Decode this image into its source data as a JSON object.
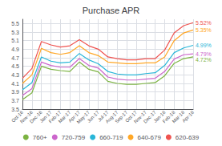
{
  "chart_data": {
    "type": "line",
    "title": "Purchase APR",
    "categories": [
      "Oct-16",
      "Nov-16",
      "Dec-16",
      "Jan-17",
      "Feb-17",
      "Mar-17",
      "Apr-17",
      "May-17",
      "Jun-17",
      "Jul-17",
      "Aug-17",
      "Sep-17",
      "Oct-17",
      "Nov-17",
      "Dec-17",
      "Jan-18",
      "Feb-18",
      "Mar-18",
      "Apr-18"
    ],
    "series": [
      {
        "name": "760+",
        "color": "#7cb342",
        "values": [
          3.72,
          3.88,
          4.5,
          4.43,
          4.4,
          4.38,
          4.6,
          4.43,
          4.37,
          4.15,
          4.1,
          4.08,
          4.08,
          4.1,
          4.12,
          4.28,
          4.57,
          4.68,
          4.72
        ]
      },
      {
        "name": "720-759",
        "color": "#cc66cc",
        "values": [
          3.82,
          3.98,
          4.6,
          4.52,
          4.48,
          4.48,
          4.68,
          4.52,
          4.46,
          4.25,
          4.2,
          4.18,
          4.18,
          4.2,
          4.22,
          4.38,
          4.67,
          4.77,
          4.79
        ]
      },
      {
        "name": "660-719",
        "color": "#29b6d8",
        "values": [
          3.95,
          4.12,
          4.72,
          4.62,
          4.58,
          4.6,
          4.8,
          4.65,
          4.56,
          4.38,
          4.32,
          4.3,
          4.3,
          4.33,
          4.35,
          4.52,
          4.82,
          4.93,
          4.99
        ]
      },
      {
        "name": "640-679",
        "color": "#ffa726",
        "values": [
          4.1,
          4.3,
          4.92,
          4.82,
          4.78,
          4.82,
          4.98,
          4.82,
          4.75,
          4.6,
          4.58,
          4.56,
          4.56,
          4.58,
          4.58,
          4.72,
          5.1,
          5.28,
          5.35
        ]
      },
      {
        "name": "620-639",
        "color": "#ef5350",
        "values": [
          4.22,
          4.45,
          5.08,
          5.0,
          4.95,
          4.98,
          5.12,
          4.98,
          4.9,
          4.72,
          4.68,
          4.65,
          4.65,
          4.68,
          4.68,
          4.88,
          5.28,
          5.45,
          5.52
        ]
      }
    ],
    "annotations": [
      {
        "series": "760+",
        "text": "4.72%"
      },
      {
        "series": "720-759",
        "text": "4.79%"
      },
      {
        "series": "660-719",
        "text": "4.99%"
      },
      {
        "series": "640-679",
        "text": "5.35%"
      },
      {
        "series": "620-639",
        "text": "5.52%"
      }
    ],
    "ylim": [
      3.5,
      5.6
    ],
    "yticks": [
      3.5,
      3.7,
      3.9,
      4.1,
      4.3,
      4.5,
      4.7,
      4.9,
      5.1,
      5.3,
      5.5
    ],
    "grid": true,
    "legend": "bottom"
  }
}
